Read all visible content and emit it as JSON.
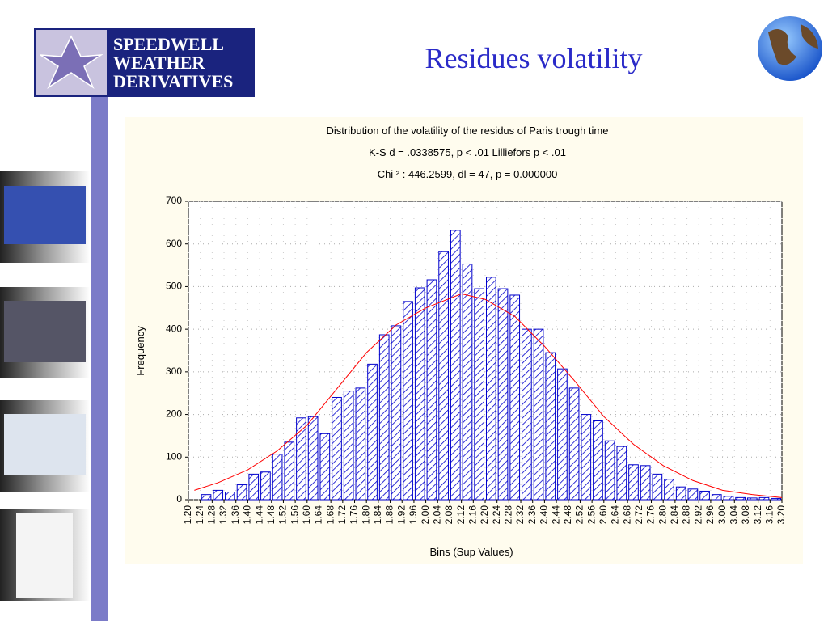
{
  "logo": {
    "lines": [
      "SPEEDWELL",
      "WEATHER",
      "DERIVATIVES"
    ]
  },
  "slide_title": "Residues volatility",
  "chart_data": {
    "type": "histogram",
    "title": "Distribution of the volatility of the residus of Paris trough time",
    "subtitle": [
      "K-S d = .0338575, p < .01 Lilliefors p < .01",
      "Chi ² : 446.2599, dl = 47, p = 0.000000"
    ],
    "x_label": "Bins (Sup Values)",
    "y_label": "Frequency",
    "bins": [
      1.2,
      1.24,
      1.28,
      1.32,
      1.36,
      1.4,
      1.44,
      1.48,
      1.52,
      1.56,
      1.6,
      1.64,
      1.68,
      1.72,
      1.76,
      1.8,
      1.84,
      1.88,
      1.92,
      1.96,
      2,
      2.04,
      2.08,
      2.12,
      2.16,
      2.2,
      2.24,
      2.28,
      2.32,
      2.36,
      2.4,
      2.44,
      2.48,
      2.52,
      2.56,
      2.6,
      2.64,
      2.68,
      2.72,
      2.76,
      2.8,
      2.84,
      2.88,
      2.92,
      2.96,
      3,
      3.04,
      3.08,
      3.12,
      3.16,
      3.2
    ],
    "values": [
      0,
      12,
      22,
      18,
      35,
      60,
      65,
      107,
      135,
      192,
      195,
      155,
      240,
      255,
      262,
      318,
      387,
      408,
      465,
      497,
      516,
      582,
      632,
      553,
      495,
      522,
      495,
      480,
      400,
      400,
      345,
      307,
      262,
      200,
      185,
      138,
      125,
      82,
      80,
      60,
      48,
      30,
      25,
      20,
      12,
      8,
      5,
      4,
      5,
      3
    ],
    "color": "#0000cc",
    "curve": {
      "color": "#ff0000",
      "x": [
        1.22,
        1.3,
        1.4,
        1.5,
        1.6,
        1.7,
        1.8,
        1.9,
        2,
        2.12,
        2.2,
        2.3,
        2.4,
        2.5,
        2.6,
        2.7,
        2.8,
        2.9,
        3,
        3.1,
        3.2
      ],
      "values": [
        22,
        40,
        70,
        115,
        175,
        260,
        345,
        410,
        450,
        483,
        470,
        430,
        360,
        280,
        195,
        130,
        80,
        45,
        22,
        12,
        5
      ]
    },
    "xlim": [
      1.2,
      3.2
    ],
    "ylim": [
      0,
      700
    ],
    "yticks": [
      0,
      100,
      200,
      300,
      400,
      500,
      600,
      700
    ],
    "xticks": [
      {
        "value": 1.2,
        "label": "1.20"
      },
      {
        "value": 1.24,
        "label": "1.24"
      },
      {
        "value": 1.28,
        "label": "1.28"
      },
      {
        "value": 1.32,
        "label": "1.32"
      },
      {
        "value": 1.36,
        "label": "1.36"
      },
      {
        "value": 1.4,
        "label": "1.40"
      },
      {
        "value": 1.44,
        "label": "1.44"
      },
      {
        "value": 1.48,
        "label": "1.48"
      },
      {
        "value": 1.52,
        "label": "1.52"
      },
      {
        "value": 1.56,
        "label": "1.56"
      },
      {
        "value": 1.6,
        "label": "1.60"
      },
      {
        "value": 1.64,
        "label": "1.64"
      },
      {
        "value": 1.68,
        "label": "1.68"
      },
      {
        "value": 1.72,
        "label": "1.72"
      },
      {
        "value": 1.76,
        "label": "1.76"
      },
      {
        "value": 1.8,
        "label": "1.80"
      },
      {
        "value": 1.84,
        "label": "1.84"
      },
      {
        "value": 1.88,
        "label": "1.88"
      },
      {
        "value": 1.92,
        "label": "1.92"
      },
      {
        "value": 1.96,
        "label": "1.96"
      },
      {
        "value": 2,
        "label": "2.00"
      },
      {
        "value": 2.04,
        "label": "2.04"
      },
      {
        "value": 2.08,
        "label": "2.08"
      },
      {
        "value": 2.12,
        "label": "2.12"
      },
      {
        "value": 2.16,
        "label": "2.16"
      },
      {
        "value": 2.2,
        "label": "2.20"
      },
      {
        "value": 2.24,
        "label": "2.24"
      },
      {
        "value": 2.28,
        "label": "2.28"
      },
      {
        "value": 2.32,
        "label": "2.32"
      },
      {
        "value": 2.36,
        "label": "2.36"
      },
      {
        "value": 2.4,
        "label": "2.40"
      },
      {
        "value": 2.44,
        "label": "2.44"
      },
      {
        "value": 2.48,
        "label": "2.48"
      },
      {
        "value": 2.52,
        "label": "2.52"
      },
      {
        "value": 2.56,
        "label": "2.56"
      },
      {
        "value": 2.6,
        "label": "2.60"
      },
      {
        "value": 2.64,
        "label": "2.64"
      },
      {
        "value": 2.68,
        "label": "2.68"
      },
      {
        "value": 2.72,
        "label": "2.72"
      },
      {
        "value": 2.76,
        "label": "2.76"
      },
      {
        "value": 2.8,
        "label": "2.80"
      },
      {
        "value": 2.84,
        "label": "2.84"
      },
      {
        "value": 2.88,
        "label": "2.88"
      },
      {
        "value": 2.92,
        "label": "2.92"
      },
      {
        "value": 2.96,
        "label": "2.96"
      },
      {
        "value": 3,
        "label": "3.00"
      },
      {
        "value": 3.04,
        "label": "3.04"
      },
      {
        "value": 3.08,
        "label": "3.08"
      },
      {
        "value": 3.12,
        "label": "3.12"
      },
      {
        "value": 3.16,
        "label": "3.16"
      },
      {
        "value": 3.2,
        "label": "3.20"
      }
    ],
    "grid": true
  }
}
